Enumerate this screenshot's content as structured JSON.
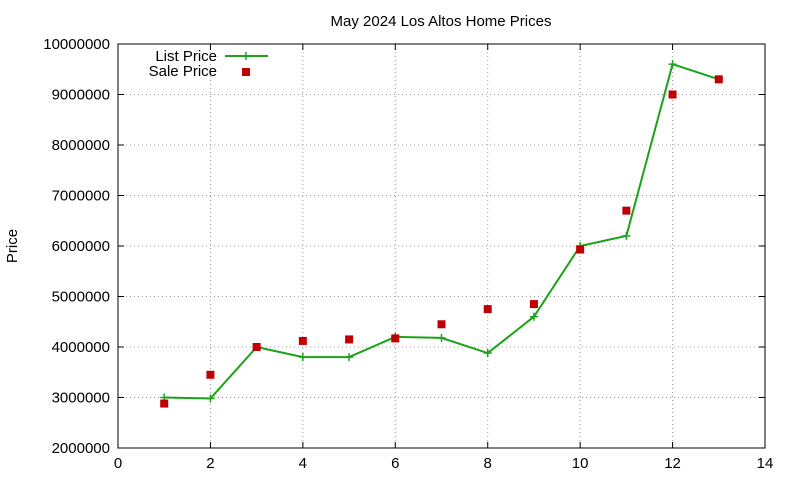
{
  "chart_data": {
    "type": "line",
    "title": "May 2024 Los Altos Home Prices",
    "xlabel": "",
    "ylabel": "Price",
    "xlim": [
      0,
      14
    ],
    "ylim": [
      2000000,
      10000000
    ],
    "x_ticks": [
      0,
      2,
      4,
      6,
      8,
      10,
      12,
      14
    ],
    "y_ticks": [
      2000000,
      3000000,
      4000000,
      5000000,
      6000000,
      7000000,
      8000000,
      9000000,
      10000000
    ],
    "x_tick_labels": [
      "0",
      "2",
      "4",
      "6",
      "8",
      "10",
      "12",
      "14"
    ],
    "y_tick_labels": [
      "2000000",
      "3000000",
      "4000000",
      "5000000",
      "6000000",
      "7000000",
      "8000000",
      "9000000",
      "10000000"
    ],
    "grid": true,
    "legend_position": "top-left",
    "series": [
      {
        "name": "List Price",
        "style": "line-plus",
        "color": "#1aa31a",
        "points": [
          {
            "x": 1,
            "y": 3000000
          },
          {
            "x": 2,
            "y": 2980000
          },
          {
            "x": 3,
            "y": 4000000
          },
          {
            "x": 4,
            "y": 3800000
          },
          {
            "x": 5,
            "y": 3800000
          },
          {
            "x": 6,
            "y": 4200000
          },
          {
            "x": 7,
            "y": 4180000
          },
          {
            "x": 8,
            "y": 3880000
          },
          {
            "x": 9,
            "y": 4600000
          },
          {
            "x": 10,
            "y": 6000000
          },
          {
            "x": 11,
            "y": 6200000
          },
          {
            "x": 12,
            "y": 9600000
          },
          {
            "x": 13,
            "y": 9300000
          }
        ]
      },
      {
        "name": "Sale Price",
        "style": "square",
        "color": "#c00000",
        "points": [
          {
            "x": 1,
            "y": 2880000
          },
          {
            "x": 2,
            "y": 3450000
          },
          {
            "x": 3,
            "y": 4000000
          },
          {
            "x": 4,
            "y": 4120000
          },
          {
            "x": 5,
            "y": 4150000
          },
          {
            "x": 6,
            "y": 4170000
          },
          {
            "x": 7,
            "y": 4450000
          },
          {
            "x": 8,
            "y": 4750000
          },
          {
            "x": 9,
            "y": 4850000
          },
          {
            "x": 10,
            "y": 5930000
          },
          {
            "x": 11,
            "y": 6700000
          },
          {
            "x": 12,
            "y": 9000000
          },
          {
            "x": 13,
            "y": 9300000
          }
        ]
      }
    ]
  }
}
